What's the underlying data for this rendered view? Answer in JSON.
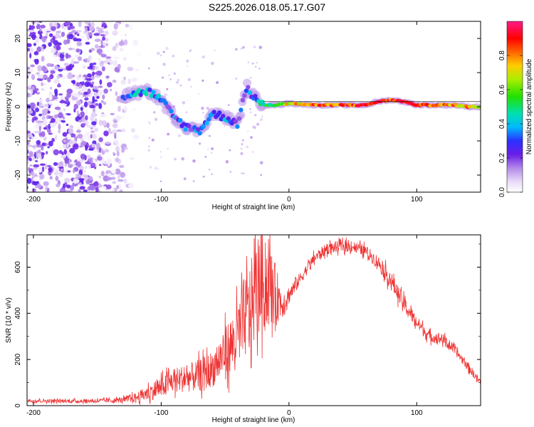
{
  "title": "S225.2026.018.05.17.G07",
  "colors": {
    "signal": "#ee3333",
    "frame": "#000000",
    "low_amp": "#d9c4f2",
    "mid_amp": "#7a24ee"
  },
  "chart_data": [
    {
      "type": "heatmap",
      "name": "spectrogram",
      "xlabel": "Height of straight line (km)",
      "ylabel": "Frequency (Hz)",
      "xlim": [
        -205,
        150
      ],
      "ylim": [
        -25,
        25
      ],
      "x_ticks": [
        -200,
        -100,
        0,
        100
      ],
      "x_tick_labels": [
        "-200",
        "-100",
        "0",
        "100"
      ],
      "y_ticks": [
        -20,
        -10,
        0,
        10,
        20
      ],
      "y_tick_labels": [
        "-20",
        "-10",
        "0",
        "10",
        "20"
      ],
      "colorbar": {
        "label": "Normalized spectral amplitude",
        "range": [
          0,
          1
        ],
        "ticks": [
          0.0,
          0.2,
          0.4,
          0.6,
          0.8
        ],
        "tick_labels": [
          "0.0",
          "0.2",
          "0.4",
          "0.6",
          "0.8"
        ]
      },
      "ridge": {
        "description": "dominant frequency trace",
        "x": [
          -130,
          -120,
          -110,
          -100,
          -90,
          -80,
          -70,
          -60,
          -50,
          -40,
          -33,
          -30,
          -25,
          -20,
          -10,
          0,
          20,
          40,
          60,
          70,
          80,
          90,
          100,
          110,
          120,
          130,
          140,
          150
        ],
        "y": [
          3,
          4,
          4.5,
          2,
          -3,
          -6,
          -7,
          -2,
          -3,
          -5,
          6,
          4,
          2,
          0.5,
          0.5,
          1,
          0.5,
          0.5,
          0.5,
          1.5,
          2,
          1.5,
          0.5,
          0.5,
          0.5,
          0.5,
          0,
          0
        ],
        "amp": [
          0.2,
          0.35,
          0.35,
          0.3,
          0.3,
          0.25,
          0.3,
          0.25,
          0.3,
          0.25,
          0.2,
          0.3,
          0.35,
          0.5,
          0.6,
          0.7,
          0.8,
          0.85,
          0.85,
          0.9,
          0.85,
          0.9,
          0.85,
          0.85,
          0.8,
          0.75,
          0.75,
          0.75
        ]
      },
      "noise_region": {
        "x_range": [
          -205,
          -115
        ],
        "y_range": [
          -25,
          25
        ],
        "amp_range": [
          0.0,
          0.25
        ]
      }
    },
    {
      "type": "line",
      "name": "snr",
      "xlabel": "Height of straight line (km)",
      "ylabel": "SNR (10 * v/v)",
      "xlim": [
        -205,
        150
      ],
      "ylim": [
        0,
        740
      ],
      "x_ticks": [
        -200,
        -100,
        0,
        100
      ],
      "x_tick_labels": [
        "-200",
        "-100",
        "0",
        "100"
      ],
      "y_ticks": [
        0,
        200,
        400,
        600
      ],
      "y_tick_labels": [
        "0",
        "200",
        "400",
        "600"
      ],
      "series": [
        {
          "name": "SNR",
          "color": "#ee3333",
          "x": [
            -205,
            -180,
            -160,
            -140,
            -130,
            -120,
            -110,
            -100,
            -90,
            -80,
            -70,
            -60,
            -50,
            -40,
            -35,
            -30,
            -25,
            -20,
            -15,
            -10,
            -5,
            0,
            10,
            20,
            30,
            40,
            50,
            60,
            70,
            80,
            90,
            100,
            110,
            120,
            130,
            140,
            150
          ],
          "y": [
            22,
            20,
            20,
            22,
            25,
            35,
            55,
            80,
            110,
            120,
            130,
            160,
            230,
            300,
            380,
            420,
            520,
            540,
            520,
            480,
            440,
            480,
            560,
            640,
            680,
            690,
            690,
            670,
            620,
            540,
            440,
            360,
            300,
            290,
            240,
            170,
            100
          ],
          "noise_amplitude": [
            8,
            8,
            8,
            10,
            12,
            20,
            35,
            45,
            55,
            60,
            70,
            80,
            110,
            150,
            180,
            200,
            220,
            220,
            180,
            120,
            60,
            40,
            25,
            25,
            25,
            25,
            25,
            25,
            30,
            40,
            35,
            30,
            25,
            25,
            20,
            20,
            15
          ]
        }
      ]
    }
  ]
}
